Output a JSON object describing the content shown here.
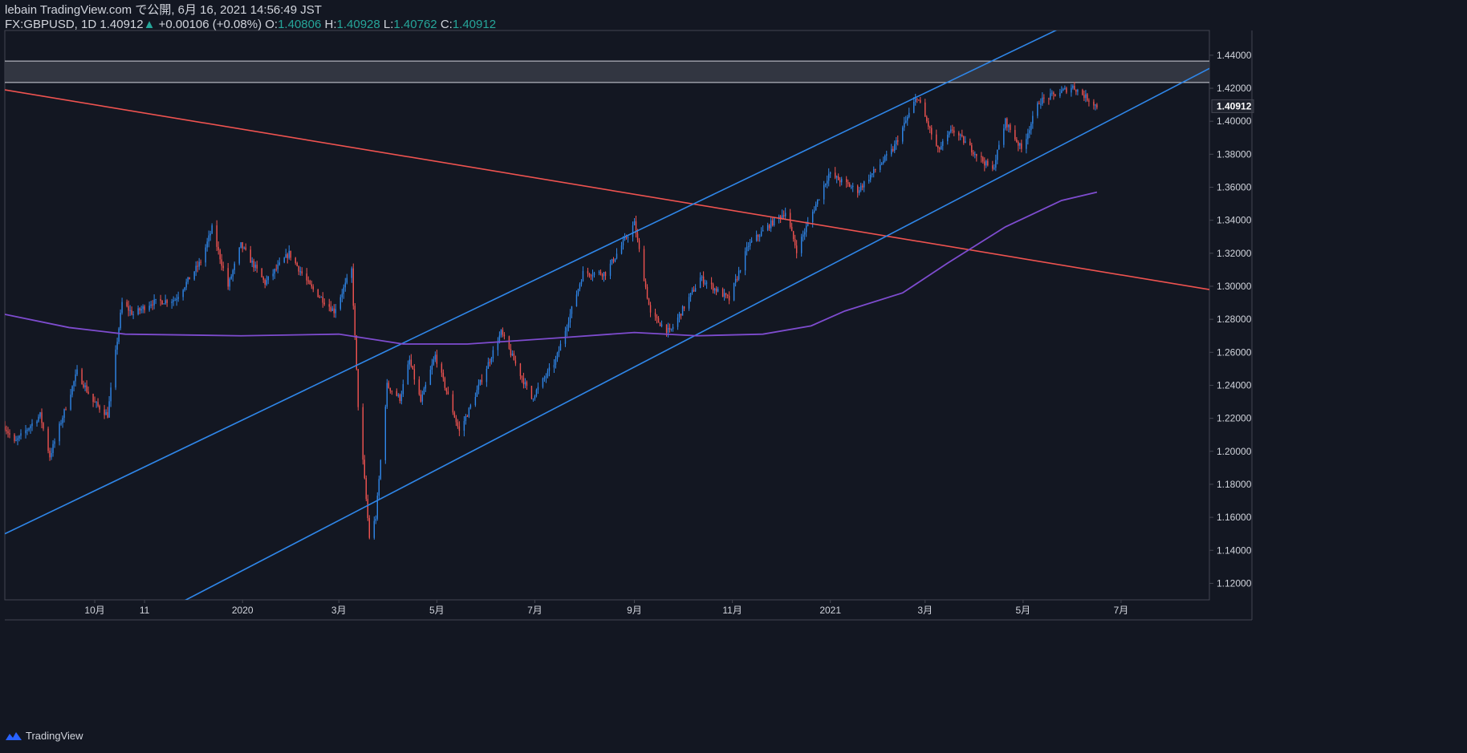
{
  "header": {
    "published": "lebain TradingView.com で公開, 6月 16, 2021 14:56:49 JST",
    "symbol": "FX:GBPUSD, 1D",
    "last": "1.40912",
    "change_arrow": "▲",
    "change": "+0.00106 (+0.08%)",
    "o_label": "O:",
    "o": "1.40806",
    "h_label": "H:",
    "h": "1.40928",
    "l_label": "L:",
    "l": "1.40762",
    "c_label": "C:",
    "c": "1.40912"
  },
  "footer": {
    "brand": "TradingView",
    "logo_icon": "tradingview-logo-icon"
  },
  "colors": {
    "background": "#131722",
    "up": "#2f86e8",
    "down": "#ef5350",
    "channel": "#2f86e8",
    "trendline": "#ef5350",
    "ma": "#7e4ccf",
    "zone_fill": "#363a45",
    "zone_border": "#d1d4dc",
    "grid_text": "#d1d4dc"
  },
  "chart_data": {
    "type": "candlestick",
    "title": "FX:GBPUSD 1D",
    "ylim": [
      1.11,
      1.455
    ],
    "y_ticks": [
      "1.12000",
      "1.14000",
      "1.16000",
      "1.18000",
      "1.20000",
      "1.22000",
      "1.24000",
      "1.26000",
      "1.28000",
      "1.30000",
      "1.32000",
      "1.34000",
      "1.36000",
      "1.38000",
      "1.40000",
      "1.42000",
      "1.44000"
    ],
    "last_price_label": "1.40912",
    "last_price": 1.40912,
    "x_ticks": [
      {
        "label": "10月",
        "date": "2019-10-01"
      },
      {
        "label": "11",
        "date": "2019-11-01"
      },
      {
        "label": "2020",
        "date": "2020-01-01"
      },
      {
        "label": "3月",
        "date": "2020-03-01"
      },
      {
        "label": "5月",
        "date": "2020-05-01"
      },
      {
        "label": "7月",
        "date": "2020-07-01"
      },
      {
        "label": "9月",
        "date": "2020-09-01"
      },
      {
        "label": "11月",
        "date": "2020-11-01"
      },
      {
        "label": "2021",
        "date": "2021-01-01"
      },
      {
        "label": "3月",
        "date": "2021-03-01"
      },
      {
        "label": "5月",
        "date": "2021-05-01"
      },
      {
        "label": "7月",
        "date": "2021-07-01"
      }
    ],
    "x_range": [
      "2019-08-06",
      "2021-08-25"
    ],
    "price_path": [
      [
        "2019-08-06",
        1.215
      ],
      [
        "2019-08-12",
        1.205
      ],
      [
        "2019-08-28",
        1.222
      ],
      [
        "2019-09-03",
        1.197
      ],
      [
        "2019-09-20",
        1.248
      ],
      [
        "2019-09-30",
        1.23
      ],
      [
        "2019-10-09",
        1.222
      ],
      [
        "2019-10-18",
        1.29
      ],
      [
        "2019-10-25",
        1.283
      ],
      [
        "2019-11-05",
        1.29
      ],
      [
        "2019-11-20",
        1.292
      ],
      [
        "2019-12-06",
        1.315
      ],
      [
        "2019-12-13",
        1.335
      ],
      [
        "2019-12-23",
        1.3
      ],
      [
        "2019-12-31",
        1.325
      ],
      [
        "2020-01-15",
        1.302
      ],
      [
        "2020-01-30",
        1.32
      ],
      [
        "2020-02-12",
        1.3
      ],
      [
        "2020-02-27",
        1.285
      ],
      [
        "2020-03-09",
        1.31
      ],
      [
        "2020-03-13",
        1.228
      ],
      [
        "2020-03-20",
        1.148
      ],
      [
        "2020-03-24",
        1.16
      ],
      [
        "2020-03-31",
        1.24
      ],
      [
        "2020-04-08",
        1.232
      ],
      [
        "2020-04-14",
        1.255
      ],
      [
        "2020-04-21",
        1.23
      ],
      [
        "2020-04-30",
        1.258
      ],
      [
        "2020-05-15",
        1.212
      ],
      [
        "2020-05-21",
        1.225
      ],
      [
        "2020-06-10",
        1.272
      ],
      [
        "2020-06-29",
        1.232
      ],
      [
        "2020-07-14",
        1.255
      ],
      [
        "2020-07-31",
        1.308
      ],
      [
        "2020-08-14",
        1.308
      ],
      [
        "2020-09-01",
        1.338
      ],
      [
        "2020-09-11",
        1.283
      ],
      [
        "2020-09-23",
        1.272
      ],
      [
        "2020-10-12",
        1.305
      ],
      [
        "2020-10-30",
        1.292
      ],
      [
        "2020-11-11",
        1.325
      ],
      [
        "2020-11-25",
        1.338
      ],
      [
        "2020-12-04",
        1.345
      ],
      [
        "2020-12-11",
        1.322
      ],
      [
        "2020-12-31",
        1.368
      ],
      [
        "2021-01-18",
        1.358
      ],
      [
        "2021-02-09",
        1.383
      ],
      [
        "2021-02-24",
        1.415
      ],
      [
        "2021-03-09",
        1.382
      ],
      [
        "2021-03-18",
        1.395
      ],
      [
        "2021-04-12",
        1.37
      ],
      [
        "2021-04-20",
        1.4
      ],
      [
        "2021-04-30",
        1.383
      ],
      [
        "2021-05-11",
        1.412
      ],
      [
        "2021-05-25",
        1.418
      ],
      [
        "2021-06-01",
        1.421
      ],
      [
        "2021-06-16",
        1.40912
      ]
    ],
    "moving_average": {
      "name": "MA",
      "points": [
        [
          "2019-08-06",
          1.283
        ],
        [
          "2019-09-15",
          1.275
        ],
        [
          "2019-10-20",
          1.271
        ],
        [
          "2019-12-31",
          1.27
        ],
        [
          "2020-03-01",
          1.271
        ],
        [
          "2020-04-10",
          1.265
        ],
        [
          "2020-05-20",
          1.265
        ],
        [
          "2020-07-20",
          1.269
        ],
        [
          "2020-09-01",
          1.272
        ],
        [
          "2020-10-10",
          1.27
        ],
        [
          "2020-11-20",
          1.271
        ],
        [
          "2020-12-20",
          1.276
        ],
        [
          "2021-01-10",
          1.285
        ],
        [
          "2021-02-15",
          1.296
        ],
        [
          "2021-03-15",
          1.314
        ],
        [
          "2021-04-20",
          1.336
        ],
        [
          "2021-05-25",
          1.352
        ],
        [
          "2021-06-16",
          1.357
        ]
      ]
    },
    "drawings": {
      "channel_upper": [
        [
          "2019-08-06",
          1.15
        ],
        [
          "2021-06-01",
          1.46
        ]
      ],
      "channel_lower": [
        [
          "2019-08-06",
          1.053
        ],
        [
          "2021-08-25",
          1.432
        ]
      ],
      "downtrend_line": [
        [
          "2019-08-06",
          1.419
        ],
        [
          "2021-08-25",
          1.298
        ]
      ],
      "resistance_zone": [
        1.4235,
        1.4365
      ]
    }
  }
}
